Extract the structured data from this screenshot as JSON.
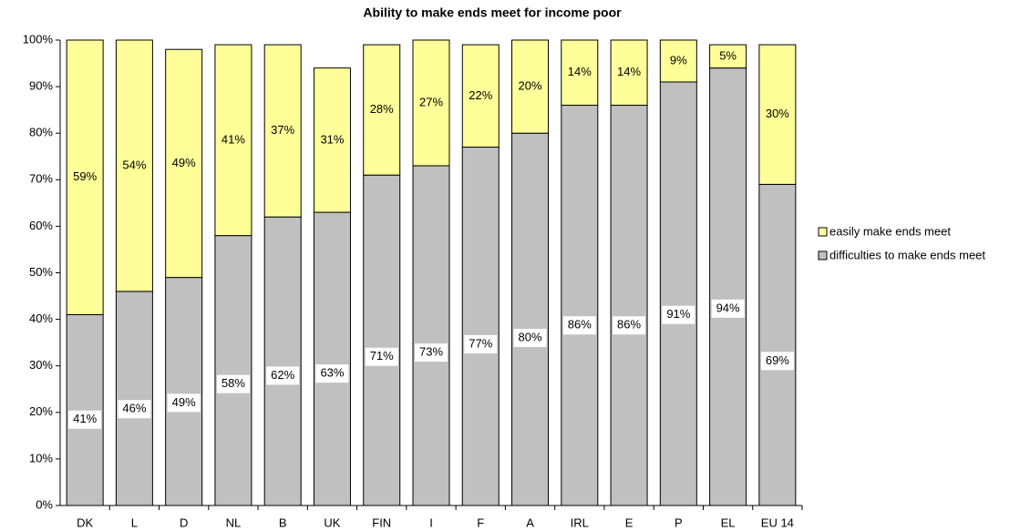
{
  "chart_data": {
    "type": "stacked_bar",
    "title": "Ability to make ends meet for income poor",
    "categories": [
      "DK",
      "L",
      "D",
      "NL",
      "B",
      "UK",
      "FIN",
      "I",
      "F",
      "A",
      "IRL",
      "E",
      "P",
      "EL",
      "EU 14"
    ],
    "series": [
      {
        "name": "difficulties to make ends meet",
        "color": "#c0c0c0",
        "values": [
          41,
          46,
          49,
          58,
          62,
          63,
          71,
          73,
          77,
          80,
          86,
          86,
          91,
          94,
          69
        ],
        "value_labels": [
          "41%",
          "46%",
          "49%",
          "58%",
          "62%",
          "63%",
          "71%",
          "73%",
          "77%",
          "80%",
          "86%",
          "86%",
          "91%",
          "94%",
          "69%"
        ]
      },
      {
        "name": "easily make ends meet",
        "color": "#ffff99",
        "values": [
          59,
          54,
          49,
          41,
          37,
          31,
          28,
          27,
          22,
          20,
          14,
          14,
          9,
          5,
          30
        ],
        "value_labels": [
          "59%",
          "54%",
          "49%",
          "41%",
          "37%",
          "31%",
          "28%",
          "27%",
          "22%",
          "20%",
          "14%",
          "14%",
          "9%",
          "5%",
          "30%"
        ]
      }
    ],
    "ylim": [
      0,
      100
    ],
    "yticks": [
      {
        "value": 0,
        "label": "0%"
      },
      {
        "value": 10,
        "label": "10%"
      },
      {
        "value": 20,
        "label": "20%"
      },
      {
        "value": 30,
        "label": "30%"
      },
      {
        "value": 40,
        "label": "40%"
      },
      {
        "value": 50,
        "label": "50%"
      },
      {
        "value": 60,
        "label": "60%"
      },
      {
        "value": 70,
        "label": "70%"
      },
      {
        "value": 80,
        "label": "80%"
      },
      {
        "value": 90,
        "label": "90%"
      },
      {
        "value": 100,
        "label": "100%"
      }
    ],
    "grid": false
  }
}
